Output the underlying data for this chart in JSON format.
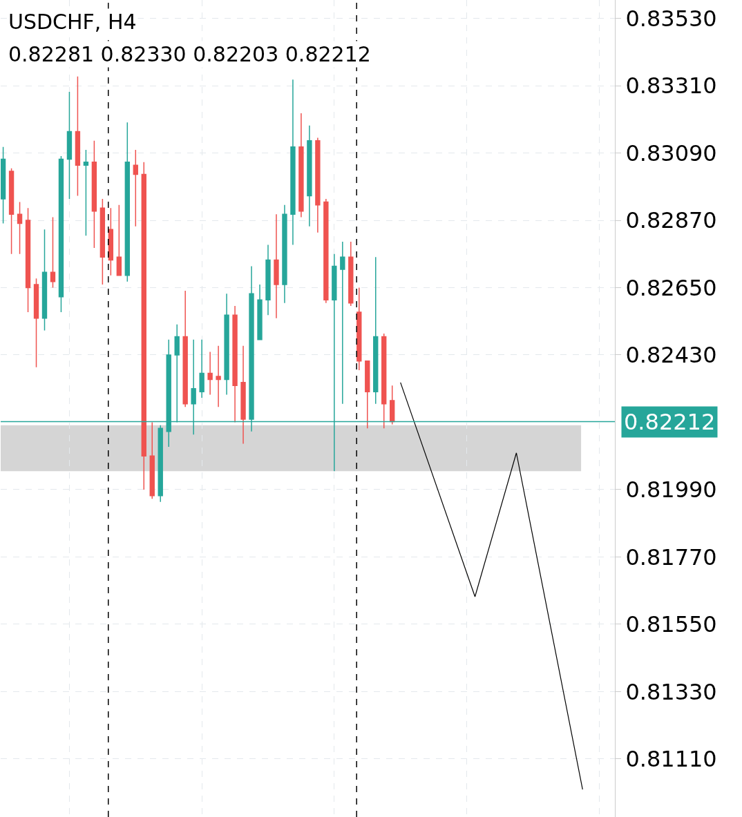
{
  "chart_data": {
    "type": "candlestick",
    "title": "USDCHF, H4",
    "subtitle": "0.82281 0.82330 0.82203 0.82212",
    "categories": [
      null,
      null,
      null,
      null,
      null,
      null,
      null,
      null,
      null,
      null,
      null,
      null,
      null,
      null,
      null,
      null,
      null,
      null,
      null,
      null,
      null,
      null,
      null,
      null,
      null,
      null,
      null,
      null,
      null,
      null,
      null,
      null,
      null,
      null,
      null,
      null,
      null,
      null,
      null,
      null,
      null,
      null,
      null,
      null,
      null,
      null,
      null,
      null,
      null,
      null,
      null,
      null,
      null,
      null,
      null,
      null,
      null,
      null,
      null,
      null,
      null,
      null,
      null,
      null,
      null,
      null,
      null,
      null,
      null,
      null,
      null,
      null,
      null,
      null
    ],
    "ohlc": [
      [
        0.8294,
        0.8311,
        0.8286,
        0.8307
      ],
      [
        0.8303,
        0.8304,
        0.8276,
        0.8289
      ],
      [
        0.8289,
        0.8293,
        0.8276,
        0.8286
      ],
      [
        0.8287,
        0.8291,
        0.8257,
        0.8265
      ],
      [
        0.8266,
        0.8268,
        0.8239,
        0.8255
      ],
      [
        0.8255,
        0.8284,
        0.8251,
        0.827
      ],
      [
        0.827,
        0.8288,
        0.8265,
        0.8267
      ],
      [
        0.8262,
        0.8308,
        0.8257,
        0.8307
      ],
      [
        0.8307,
        0.8329,
        0.8294,
        0.8316
      ],
      [
        0.8316,
        0.8334,
        0.8295,
        0.8305
      ],
      [
        0.8305,
        0.831,
        0.8282,
        0.8306
      ],
      [
        0.8306,
        0.8313,
        0.8278,
        0.829
      ],
      [
        0.8291,
        0.8294,
        0.8266,
        0.8275
      ],
      [
        0.8284,
        0.8291,
        0.8269,
        0.8274
      ],
      [
        0.8275,
        0.8292,
        0.8269,
        0.8269
      ],
      [
        0.8269,
        0.8319,
        0.8267,
        0.8306
      ],
      [
        0.8305,
        0.831,
        0.8285,
        0.8302
      ],
      [
        0.8302,
        0.8306,
        0.8199,
        0.821
      ],
      [
        0.821,
        0.8221,
        0.8196,
        0.8197
      ],
      [
        0.8197,
        0.822,
        0.8195,
        0.8219
      ],
      [
        0.8218,
        0.8248,
        0.8213,
        0.8243
      ],
      [
        0.8243,
        0.8253,
        0.8221,
        0.8249
      ],
      [
        0.8249,
        0.8264,
        0.8226,
        0.8227
      ],
      [
        0.8227,
        0.8248,
        0.8217,
        0.8232
      ],
      [
        0.8231,
        0.8248,
        0.8229,
        0.8237
      ],
      [
        0.8237,
        0.8244,
        0.823,
        0.8235
      ],
      [
        0.8236,
        0.8246,
        0.8226,
        0.8235
      ],
      [
        0.8235,
        0.8263,
        0.823,
        0.8256
      ],
      [
        0.8256,
        0.8259,
        0.8221,
        0.8233
      ],
      [
        0.8234,
        0.8246,
        0.8214,
        0.8222
      ],
      [
        0.8222,
        0.8272,
        0.8218,
        0.8263
      ],
      [
        0.8248,
        0.8266,
        0.8248,
        0.8261
      ],
      [
        0.8261,
        0.8279,
        0.8256,
        0.8274
      ],
      [
        0.8274,
        0.8289,
        0.8255,
        0.8266
      ],
      [
        0.8266,
        0.8292,
        0.826,
        0.8289
      ],
      [
        0.8289,
        0.8333,
        0.8279,
        0.8311
      ],
      [
        0.8311,
        0.8322,
        0.8288,
        0.829
      ],
      [
        0.8295,
        0.8318,
        0.8285,
        0.8313
      ],
      [
        0.8313,
        0.8314,
        0.8283,
        0.8292
      ],
      [
        0.8293,
        0.8294,
        0.826,
        0.8261
      ],
      [
        0.8261,
        0.8276,
        0.8205,
        0.8272
      ],
      [
        0.8271,
        0.828,
        0.8227,
        0.8275
      ],
      [
        0.8275,
        0.828,
        0.8259,
        0.826
      ],
      [
        0.8257,
        0.8265,
        0.8238,
        0.8241
      ],
      [
        0.8241,
        0.8241,
        0.8219,
        0.8231
      ],
      [
        0.8231,
        0.8275,
        0.8227,
        0.8249
      ],
      [
        0.8249,
        0.825,
        0.8219,
        0.8227
      ],
      [
        0.82281,
        0.8233,
        0.82203,
        0.82212
      ],
      null,
      null,
      null,
      null,
      null,
      null,
      null,
      null,
      null,
      null,
      null,
      null,
      null,
      null,
      null,
      null,
      null,
      null,
      null,
      null,
      null,
      null,
      null,
      null,
      null,
      null
    ],
    "colors": [
      "#26a69a",
      "#ef5350",
      "#ef5350",
      "#ef5350",
      "#ef5350",
      "#26a69a",
      "#ef5350",
      "#26a69a",
      "#26a69a",
      "#ef5350",
      "#26a69a",
      "#ef5350",
      "#ef5350",
      "#ef5350",
      "#ef5350",
      "#26a69a",
      "#ef5350",
      "#ef5350",
      "#ef5350",
      "#26a69a",
      "#26a69a",
      "#26a69a",
      "#ef5350",
      "#26a69a",
      "#26a69a",
      "#ef5350",
      "#ef5350",
      "#26a69a",
      "#ef5350",
      "#ef5350",
      "#26a69a",
      "#26a69a",
      "#26a69a",
      "#ef5350",
      "#26a69a",
      "#26a69a",
      "#ef5350",
      "#26a69a",
      "#ef5350",
      "#ef5350",
      "#26a69a",
      "#26a69a",
      "#ef5350",
      "#ef5350",
      "#ef5350",
      "#26a69a",
      "#ef5350",
      "#ef5350",
      null,
      null,
      null,
      null,
      null,
      null,
      null,
      null,
      null,
      null,
      null,
      null,
      null,
      null,
      null,
      null,
      null,
      null,
      null,
      null,
      null,
      null,
      null,
      null,
      null,
      null
    ],
    "series": [
      {
        "type": "line",
        "values": [
          null,
          null,
          null,
          null,
          null,
          null,
          null,
          null,
          null,
          null,
          null,
          null,
          null,
          null,
          null,
          null,
          null,
          null,
          null,
          null,
          null,
          null,
          null,
          null,
          null,
          null,
          null,
          null,
          null,
          null,
          null,
          null,
          null,
          null,
          null,
          null,
          null,
          null,
          null,
          null,
          null,
          null,
          null,
          null,
          null,
          null,
          null,
          null,
          0.8234,
          null,
          null,
          null,
          null,
          null,
          null,
          null,
          null,
          0.8164,
          null,
          null,
          null,
          null,
          0.8211,
          null,
          null,
          null,
          null,
          null,
          null,
          null,
          0.8101,
          null,
          null,
          null
        ],
        "color": "#000000"
      }
    ],
    "ylim": [
      0.8092,
      0.8359
    ],
    "yticks": [
      {
        "value": 0.8111,
        "label": "0.81110"
      },
      {
        "value": 0.8133,
        "label": "0.81330"
      },
      {
        "value": 0.8155,
        "label": "0.81550"
      },
      {
        "value": 0.8177,
        "label": "0.81770"
      },
      {
        "value": 0.8199,
        "label": "0.81990"
      },
      {
        "value": 0.8243,
        "label": "0.82430"
      },
      {
        "value": 0.8265,
        "label": "0.82650"
      },
      {
        "value": 0.8287,
        "label": "0.82870"
      },
      {
        "value": 0.8309,
        "label": "0.83090"
      },
      {
        "value": 0.8331,
        "label": "0.83310"
      },
      {
        "value": 0.8353,
        "label": "0.83530"
      }
    ],
    "ref_lines": [
      {
        "axis": "y",
        "value": 0.82212,
        "label": "0.82212",
        "color": "#26a69a"
      }
    ],
    "bands": [
      {
        "axis": "y",
        "from": 0.8205,
        "to": 0.822,
        "color": "#d3d3d3"
      }
    ],
    "grid": true,
    "tick_labels": "y"
  }
}
